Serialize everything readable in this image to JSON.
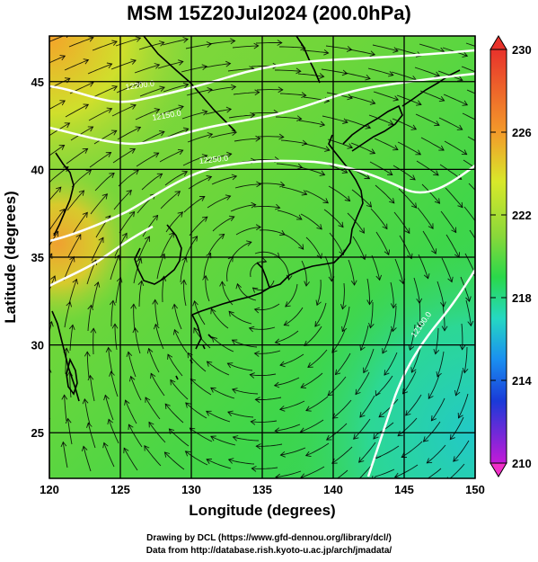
{
  "title": "MSM 15Z20Jul2024 (200.0hPa)",
  "x_axis": {
    "label": "Longitude (degrees)",
    "ticks": [
      "120",
      "125",
      "130",
      "135",
      "140",
      "145",
      "150"
    ]
  },
  "y_axis": {
    "label": "Latitude  (degrees)",
    "ticks": [
      "25",
      "30",
      "35",
      "40",
      "45"
    ]
  },
  "colorbar": {
    "ticks": [
      "230",
      "226",
      "222",
      "218",
      "214",
      "210"
    ],
    "colors": [
      "#e8322b",
      "#f39a2a",
      "#d8e82a",
      "#2ad84a",
      "#25d8c2",
      "#1a8ff0",
      "#1a3ad8",
      "#c31ad8"
    ]
  },
  "contour_labels": [
    "12200.0",
    "12250.0",
    "12150.0",
    "12100.0"
  ],
  "footer": {
    "line1": "Drawing by DCL (https://www.gfd-dennou.org/library/dcl/)",
    "line2": "Data from http://database.rish.kyoto-u.ac.jp/arch/jmadata/"
  },
  "chart_data": {
    "type": "heatmap",
    "title": "MSM 15Z20Jul2024 (200.0hPa)",
    "xlabel": "Longitude (degrees)",
    "ylabel": "Latitude  (degrees)",
    "xlim": [
      120,
      150
    ],
    "ylim": [
      22.4,
      47.6
    ],
    "xticks": [
      120,
      125,
      130,
      135,
      140,
      145,
      150
    ],
    "yticks": [
      25,
      30,
      35,
      40,
      45
    ],
    "colorbar_range": [
      210,
      230
    ],
    "colorbar_ticks": [
      230,
      226,
      222,
      218,
      214,
      210
    ],
    "contour_levels": [
      12100,
      12150,
      12200,
      12250
    ],
    "grid": true
  }
}
